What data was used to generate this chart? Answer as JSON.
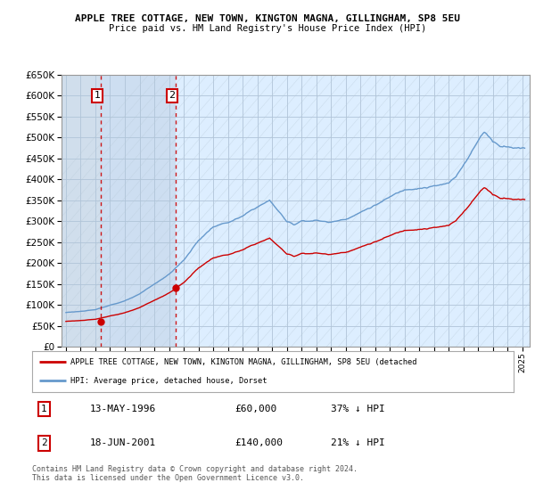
{
  "title": "APPLE TREE COTTAGE, NEW TOWN, KINGTON MAGNA, GILLINGHAM, SP8 5EU",
  "subtitle": "Price paid vs. HM Land Registry's House Price Index (HPI)",
  "ylim": [
    0,
    650000
  ],
  "yticks": [
    0,
    50000,
    100000,
    150000,
    200000,
    250000,
    300000,
    350000,
    400000,
    450000,
    500000,
    550000,
    600000,
    650000
  ],
  "xlim_start": 1993.7,
  "xlim_end": 2025.5,
  "sale1_date": 1996.37,
  "sale1_price": 60000,
  "sale2_date": 2001.46,
  "sale2_price": 140000,
  "legend_line1": "APPLE TREE COTTAGE, NEW TOWN, KINGTON MAGNA, GILLINGHAM, SP8 5EU (detached",
  "legend_line2": "HPI: Average price, detached house, Dorset",
  "table_row1": [
    "1",
    "13-MAY-1996",
    "£60,000",
    "37% ↓ HPI"
  ],
  "table_row2": [
    "2",
    "18-JUN-2001",
    "£140,000",
    "21% ↓ HPI"
  ],
  "footer": "Contains HM Land Registry data © Crown copyright and database right 2024.\nThis data is licensed under the Open Government Licence v3.0.",
  "hpi_color": "#6699cc",
  "price_color": "#cc0000",
  "bg_color": "#ddeeff",
  "hatch_color": "#c8d8e8",
  "grid_color": "#b0c4d8",
  "vline_color": "#cc0000",
  "shade_color": "#ccddf0"
}
